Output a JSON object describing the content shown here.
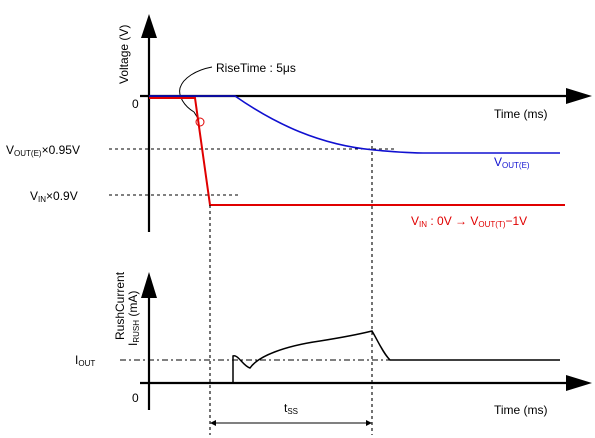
{
  "top_plot": {
    "y_axis_label": "Voltage (V)",
    "x_axis_label": "Time (ms)",
    "zero_label": "0",
    "rise_time_label": "RiseTime : 5μs",
    "vout_095": {
      "main": "V",
      "sub": "OUT(E)",
      "suffix": "×0.95V"
    },
    "vin_09": {
      "main": "V",
      "sub": "IN",
      "suffix": "×0.9V"
    },
    "vout_curve_label": {
      "main": "V",
      "sub": "OUT(E)"
    },
    "vin_curve_label": {
      "main": "V",
      "sub": "IN",
      "mid": " : 0V → V",
      "sub2": "OUT(T)",
      "suffix": "−1V"
    },
    "colors": {
      "vout": "#1010d0",
      "vin": "#e00000"
    }
  },
  "bottom_plot": {
    "y_axis_label_line1": "RushCurrent",
    "y_axis_label_line2": {
      "main": "I",
      "sub": "RUSH",
      "suffix": " (mA)"
    },
    "x_axis_label": "Time (ms)",
    "zero_label": "0",
    "iout_label": {
      "main": "I",
      "sub": "OUT"
    },
    "tss_label": {
      "main": "t",
      "sub": "SS"
    }
  }
}
